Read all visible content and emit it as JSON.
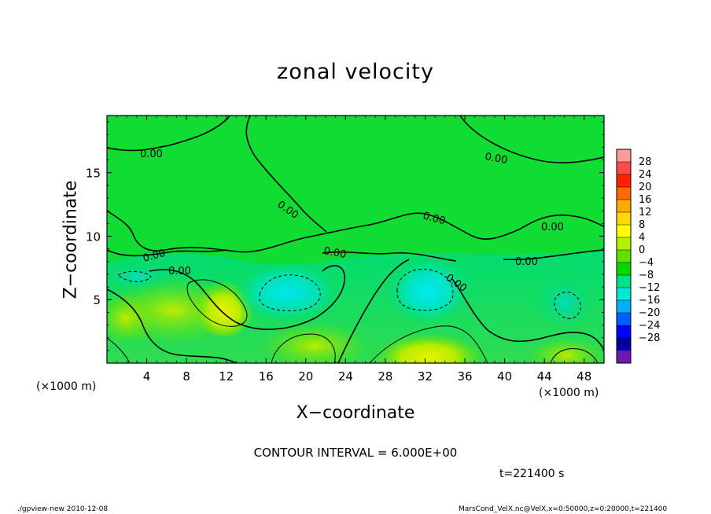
{
  "chart_data": {
    "type": "heatmap",
    "title": "zonal velocity",
    "xlabel": "X−coordinate",
    "ylabel": "Z−coordinate",
    "x_unit_left": "(×1000 m)",
    "x_unit_right": "(×1000 m)",
    "x_ticks": [
      "4",
      "8",
      "12",
      "16",
      "20",
      "24",
      "28",
      "32",
      "36",
      "40",
      "44",
      "48"
    ],
    "x_tick_values": [
      4,
      8,
      12,
      16,
      20,
      24,
      28,
      32,
      36,
      40,
      44,
      48
    ],
    "y_ticks": [
      "5",
      "10",
      "15"
    ],
    "y_tick_values": [
      5,
      10,
      15
    ],
    "xlim": [
      0,
      50
    ],
    "ylim": [
      0,
      19.5
    ],
    "contour_labels": [
      "0.00",
      "0.00",
      "0.00",
      "0.00",
      "0.00",
      "0.00",
      "0.00",
      "0.00",
      "0.00",
      "0.00"
    ],
    "colorbar": {
      "labels": [
        "28",
        "24",
        "20",
        "16",
        "12",
        "8",
        "4",
        "0",
        "−4",
        "−8",
        "−12",
        "−16",
        "−20",
        "−24",
        "−28"
      ],
      "levels": [
        28,
        24,
        20,
        16,
        12,
        8,
        4,
        0,
        -4,
        -8,
        -12,
        -16,
        -20,
        -24,
        -28
      ],
      "colors": [
        "#ff9a9a",
        "#ff4a4a",
        "#ff2200",
        "#ff6a00",
        "#ffaa00",
        "#ffd800",
        "#ffff00",
        "#b4f000",
        "#64e000",
        "#00d800",
        "#00e088",
        "#00e8d8",
        "#00b0ff",
        "#0060ff",
        "#0000ff",
        "#0000a0",
        "#6a1ab0"
      ]
    },
    "regions": [
      {
        "kind": "upper-quiescent",
        "x": [
          0,
          50
        ],
        "z": [
          9,
          19.5
        ],
        "value": 0
      },
      {
        "kind": "negative-core",
        "x": [
          20,
          20
        ],
        "z": [
          5.8,
          5.8
        ],
        "value": -8
      },
      {
        "kind": "negative-core",
        "x": [
          33,
          33
        ],
        "z": [
          6.5,
          6.5
        ],
        "value": -10
      },
      {
        "kind": "negative-core",
        "x": [
          46,
          46
        ],
        "z": [
          4.5,
          4.5
        ],
        "value": -6
      },
      {
        "kind": "positive-core",
        "x": [
          32,
          32
        ],
        "z": [
          0.8,
          0.8
        ],
        "value": 8
      },
      {
        "kind": "positive-core",
        "x": [
          23,
          23
        ],
        "z": [
          1.5,
          1.5
        ],
        "value": 6
      },
      {
        "kind": "positive-core",
        "x": [
          12,
          12
        ],
        "z": [
          4.5,
          4.5
        ],
        "value": 5
      },
      {
        "kind": "positive-core",
        "x": [
          2,
          2
        ],
        "z": [
          3.5,
          3.5
        ],
        "value": 5
      }
    ]
  },
  "contour_interval_text": "CONTOUR INTERVAL = 6.000E+00",
  "time_text": "t=221400 s",
  "footer_left": "./gpview-new  2010-12-08",
  "footer_right": "MarsCond_VelX.nc@VelX,x=0:50000,z=0:20000,t=221400"
}
